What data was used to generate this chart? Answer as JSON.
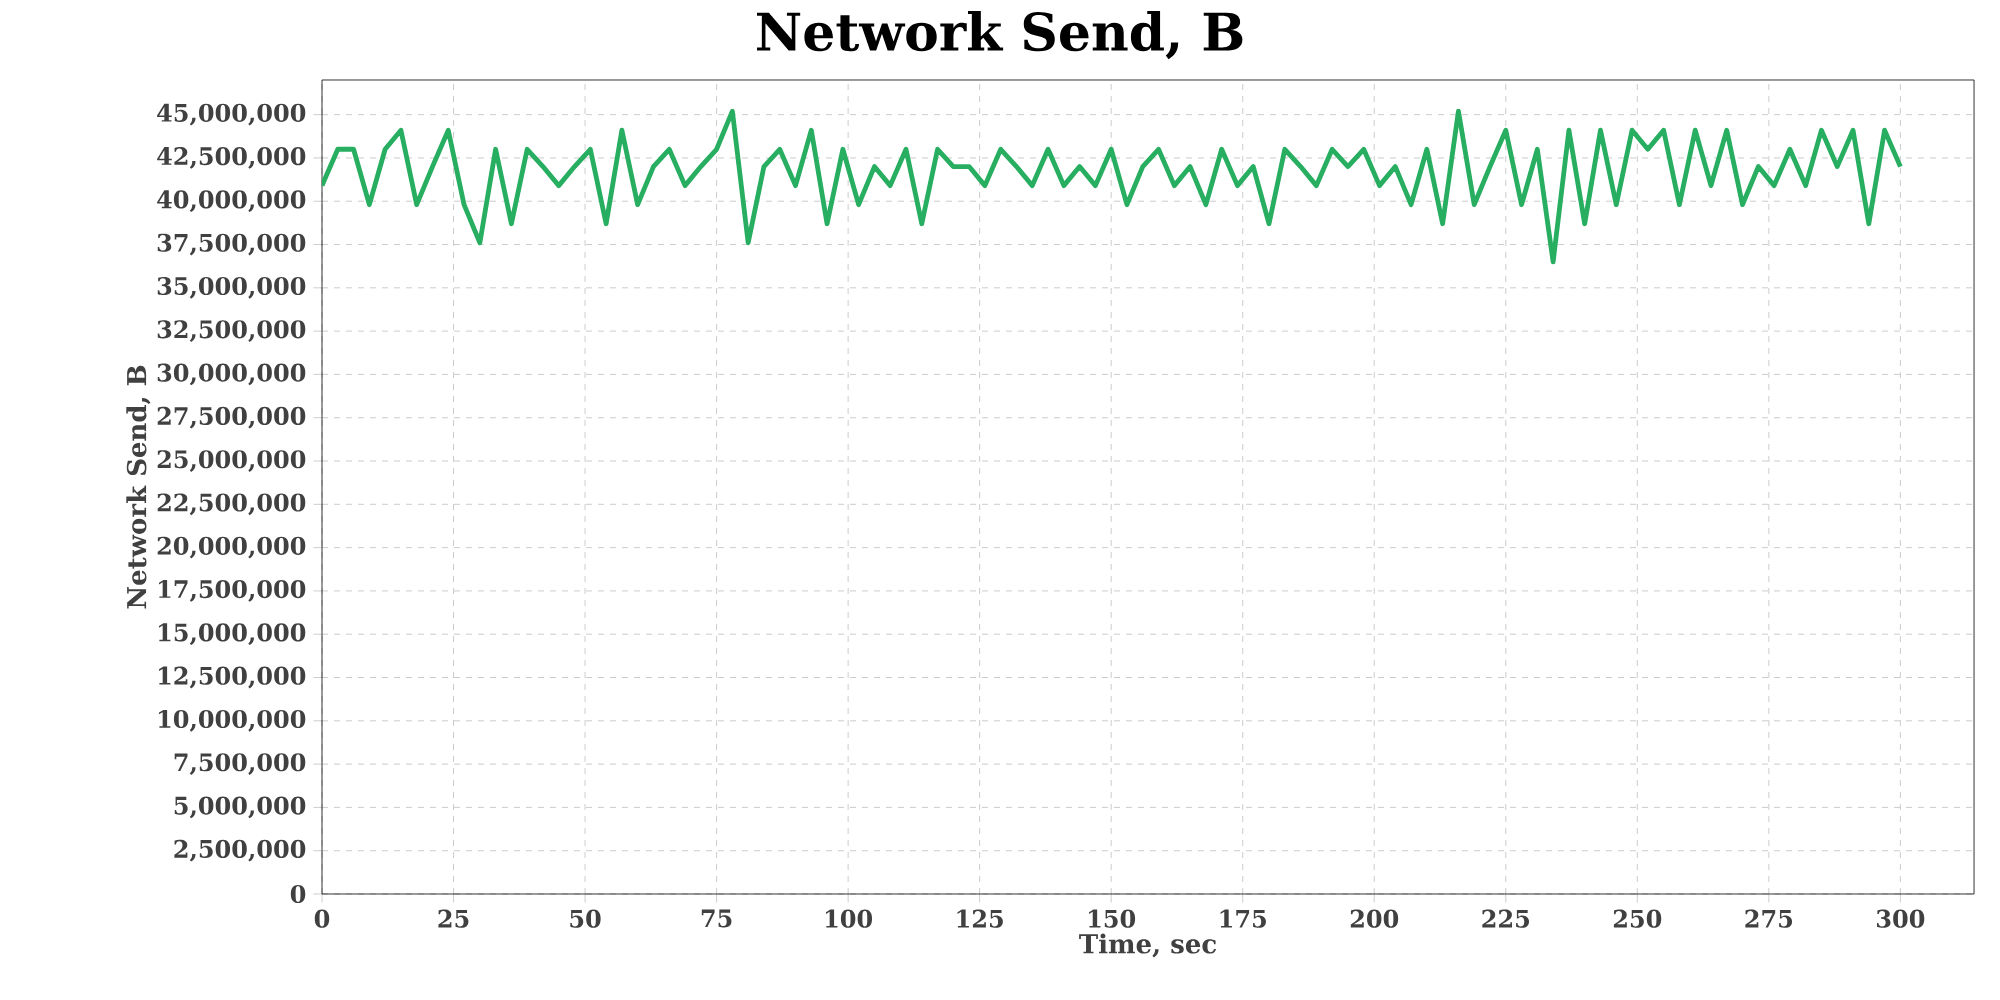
{
  "chart_data": {
    "type": "line",
    "title": "Network Send, B",
    "xlabel": "Time, sec",
    "ylabel": "Network Send, B",
    "color": "#27ae60",
    "grid": true,
    "xlim": [
      0,
      314
    ],
    "ylim": [
      0,
      47000000
    ],
    "xticks": [
      0,
      25,
      50,
      75,
      100,
      125,
      150,
      175,
      200,
      225,
      250,
      275,
      300
    ],
    "yticks": [
      {
        "value": 0,
        "label": "0"
      },
      {
        "value": 2500000,
        "label": "2,500,000"
      },
      {
        "value": 5000000,
        "label": "5,000,000"
      },
      {
        "value": 7500000,
        "label": "7,500,000"
      },
      {
        "value": 10000000,
        "label": "10,000,000"
      },
      {
        "value": 12500000,
        "label": "12,500,000"
      },
      {
        "value": 15000000,
        "label": "15,000,000"
      },
      {
        "value": 17500000,
        "label": "17,500,000"
      },
      {
        "value": 20000000,
        "label": "20,000,000"
      },
      {
        "value": 22500000,
        "label": "22,500,000"
      },
      {
        "value": 25000000,
        "label": "25,000,000"
      },
      {
        "value": 27500000,
        "label": "27,500,000"
      },
      {
        "value": 30000000,
        "label": "30,000,000"
      },
      {
        "value": 32500000,
        "label": "32,500,000"
      },
      {
        "value": 35000000,
        "label": "35,000,000"
      },
      {
        "value": 37500000,
        "label": "37,500,000"
      },
      {
        "value": 40000000,
        "label": "40,000,000"
      },
      {
        "value": 42500000,
        "label": "42,500,000"
      },
      {
        "value": 45000000,
        "label": "45,000,000"
      }
    ],
    "x": [
      0,
      3,
      6,
      9,
      12,
      15,
      18,
      21,
      24,
      27,
      30,
      33,
      36,
      39,
      42,
      45,
      48,
      51,
      54,
      57,
      60,
      63,
      66,
      69,
      72,
      75,
      78,
      81,
      84,
      87,
      90,
      93,
      96,
      99,
      102,
      105,
      108,
      111,
      114,
      117,
      120,
      123,
      126,
      129,
      132,
      135,
      138,
      141,
      144,
      147,
      150,
      153,
      156,
      159,
      162,
      165,
      168,
      171,
      174,
      177,
      180,
      183,
      186,
      189,
      192,
      195,
      198,
      201,
      204,
      207,
      210,
      213,
      216,
      219,
      222,
      225,
      228,
      231,
      234,
      237,
      240,
      243,
      246,
      249,
      252,
      255,
      258,
      261,
      264,
      267,
      270,
      273,
      276,
      279,
      282,
      285,
      288,
      291,
      294,
      297,
      300
    ],
    "values": [
      40900000,
      43000000,
      43000000,
      39800000,
      43000000,
      44100000,
      39800000,
      42000000,
      44100000,
      39800000,
      37600000,
      43000000,
      38700000,
      43000000,
      42000000,
      40900000,
      42000000,
      43000000,
      38700000,
      44100000,
      39800000,
      42000000,
      43000000,
      40900000,
      42000000,
      43000000,
      45200000,
      37600000,
      42000000,
      43000000,
      40900000,
      44100000,
      38700000,
      43000000,
      39800000,
      42000000,
      40900000,
      43000000,
      38700000,
      43000000,
      42000000,
      42000000,
      40900000,
      43000000,
      42000000,
      40900000,
      43000000,
      40900000,
      42000000,
      40900000,
      43000000,
      39800000,
      42000000,
      43000000,
      40900000,
      42000000,
      39800000,
      43000000,
      40900000,
      42000000,
      38700000,
      43000000,
      42000000,
      40900000,
      43000000,
      42000000,
      43000000,
      40900000,
      42000000,
      39800000,
      43000000,
      38700000,
      45200000,
      39800000,
      42000000,
      44100000,
      39800000,
      43000000,
      36500000,
      44100000,
      38700000,
      44100000,
      39800000,
      44100000,
      43000000,
      44100000,
      39800000,
      44100000,
      40900000,
      44100000,
      39800000,
      42000000,
      40900000,
      43000000,
      40900000,
      44100000,
      42000000,
      44100000,
      38700000,
      44100000,
      42000000
    ]
  }
}
